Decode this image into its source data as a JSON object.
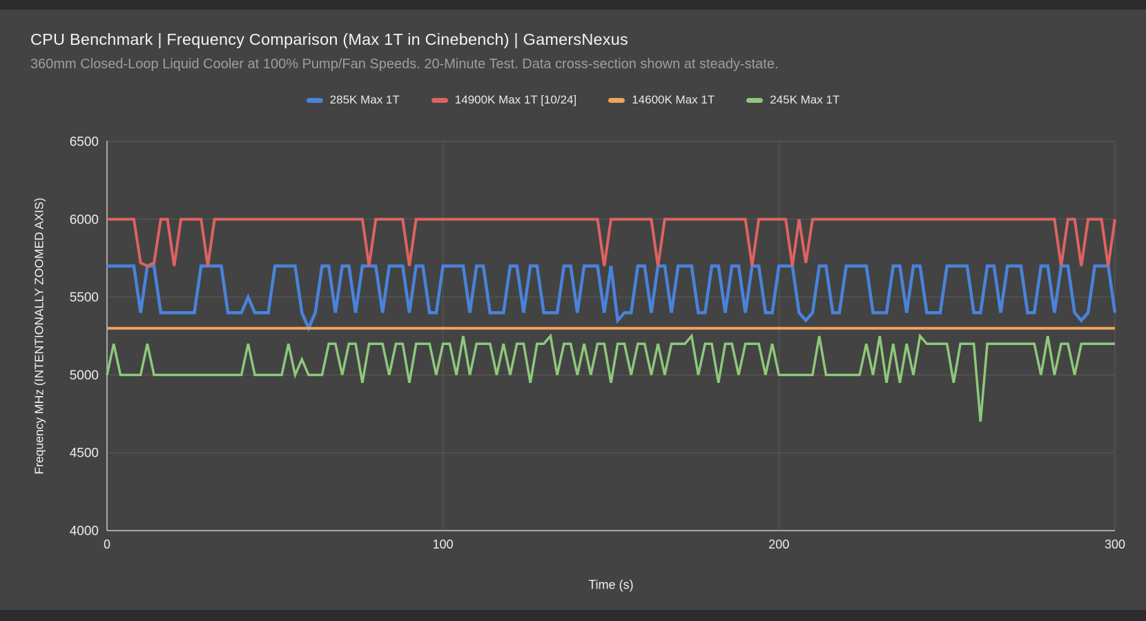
{
  "page": {
    "background": "#434343",
    "bar_color": "#2c2c2c"
  },
  "header": {
    "title": "CPU Benchmark | Frequency Comparison (Max 1T in Cinebench) | GamersNexus",
    "subtitle": "360mm Closed-Loop Liquid Cooler at 100% Pump/Fan Speeds. 20-Minute Test. Data cross-section shown at steady-state."
  },
  "colors": {
    "gridline": "#5d5d5d",
    "axis_line": "#c9c9c9",
    "tick_label": "#ececec"
  },
  "chart_data": {
    "type": "line",
    "title": "CPU Benchmark | Frequency Comparison (Max 1T in Cinebench) | GamersNexus",
    "xlabel": "Time (s)",
    "ylabel": "Frequency MHz (INTENTIONALLY ZOOMED AXIS)",
    "xlim": [
      0,
      300
    ],
    "ylim": [
      4000,
      6500
    ],
    "x_ticks": [
      0,
      100,
      200,
      300
    ],
    "y_ticks": [
      4000,
      4500,
      5000,
      5500,
      6000,
      6500
    ],
    "grid": true,
    "legend_position": "top-center",
    "x_start": 0,
    "x_step": 2,
    "series": [
      {
        "name": "285K Max 1T",
        "color": "#4983db",
        "values": [
          5700,
          5700,
          5700,
          5700,
          5700,
          5400,
          5700,
          5700,
          5400,
          5400,
          5400,
          5400,
          5400,
          5400,
          5700,
          5700,
          5700,
          5700,
          5400,
          5400,
          5400,
          5500,
          5400,
          5400,
          5400,
          5700,
          5700,
          5700,
          5700,
          5400,
          5300,
          5400,
          5700,
          5700,
          5400,
          5700,
          5700,
          5400,
          5700,
          5700,
          5700,
          5400,
          5700,
          5700,
          5700,
          5400,
          5700,
          5700,
          5400,
          5400,
          5700,
          5700,
          5700,
          5700,
          5400,
          5700,
          5700,
          5400,
          5400,
          5400,
          5700,
          5700,
          5400,
          5700,
          5700,
          5400,
          5400,
          5400,
          5700,
          5700,
          5400,
          5700,
          5700,
          5700,
          5400,
          5700,
          5350,
          5400,
          5400,
          5700,
          5700,
          5400,
          5700,
          5700,
          5400,
          5700,
          5700,
          5700,
          5400,
          5400,
          5700,
          5700,
          5400,
          5700,
          5700,
          5400,
          5700,
          5700,
          5400,
          5400,
          5700,
          5700,
          5700,
          5400,
          5350,
          5400,
          5700,
          5700,
          5400,
          5400,
          5700,
          5700,
          5700,
          5700,
          5400,
          5400,
          5400,
          5700,
          5700,
          5400,
          5700,
          5700,
          5400,
          5400,
          5400,
          5700,
          5700,
          5700,
          5700,
          5400,
          5400,
          5700,
          5700,
          5400,
          5700,
          5700,
          5700,
          5400,
          5400,
          5700,
          5700,
          5400,
          5700,
          5700,
          5400,
          5350,
          5400,
          5700,
          5700,
          5700,
          5400
        ]
      },
      {
        "name": "14900K Max 1T [10/24]",
        "color": "#dd6360",
        "values": [
          6000,
          6000,
          6000,
          6000,
          6000,
          5720,
          5700,
          5720,
          6000,
          6000,
          5700,
          6000,
          6000,
          6000,
          6000,
          5700,
          6000,
          6000,
          6000,
          6000,
          6000,
          6000,
          6000,
          6000,
          6000,
          6000,
          6000,
          6000,
          6000,
          6000,
          6000,
          6000,
          6000,
          6000,
          6000,
          6000,
          6000,
          6000,
          6000,
          5700,
          6000,
          6000,
          6000,
          6000,
          6000,
          5700,
          6000,
          6000,
          6000,
          6000,
          6000,
          6000,
          6000,
          6000,
          6000,
          6000,
          6000,
          6000,
          6000,
          6000,
          6000,
          6000,
          6000,
          6000,
          6000,
          6000,
          6000,
          6000,
          6000,
          6000,
          6000,
          6000,
          6000,
          6000,
          5700,
          6000,
          6000,
          6000,
          6000,
          6000,
          6000,
          6000,
          5700,
          6000,
          6000,
          6000,
          6000,
          6000,
          6000,
          6000,
          6000,
          6000,
          6000,
          6000,
          6000,
          6000,
          5700,
          6000,
          6000,
          6000,
          6000,
          6000,
          5700,
          6000,
          5720,
          6000,
          6000,
          6000,
          6000,
          6000,
          6000,
          6000,
          6000,
          6000,
          6000,
          6000,
          6000,
          6000,
          6000,
          6000,
          6000,
          6000,
          6000,
          6000,
          6000,
          6000,
          6000,
          6000,
          6000,
          6000,
          6000,
          6000,
          6000,
          6000,
          6000,
          6000,
          6000,
          6000,
          6000,
          6000,
          6000,
          6000,
          5700,
          6000,
          6000,
          5700,
          6000,
          6000,
          6000,
          5700,
          6000
        ]
      },
      {
        "name": "14600K Max 1T",
        "color": "#eea45c",
        "values": [
          5300,
          5300,
          5300,
          5300,
          5300,
          5300,
          5300,
          5300,
          5300,
          5300,
          5300,
          5300,
          5300,
          5300,
          5300,
          5300,
          5300,
          5300,
          5300,
          5300,
          5300,
          5300,
          5300,
          5300,
          5300,
          5300,
          5300,
          5300,
          5300,
          5300,
          5300,
          5300,
          5300,
          5300,
          5300,
          5300,
          5300,
          5300,
          5300,
          5300,
          5300,
          5300,
          5300,
          5300,
          5300,
          5300,
          5300,
          5300,
          5300,
          5300,
          5300,
          5300,
          5300,
          5300,
          5300,
          5300,
          5300,
          5300,
          5300,
          5300,
          5300,
          5300,
          5300,
          5300,
          5300,
          5300,
          5300,
          5300,
          5300,
          5300,
          5300,
          5300,
          5300,
          5300,
          5300,
          5300,
          5300,
          5300,
          5300,
          5300,
          5300,
          5300,
          5300,
          5300,
          5300,
          5300,
          5300,
          5300,
          5300,
          5300,
          5300,
          5300,
          5300,
          5300,
          5300,
          5300,
          5300,
          5300,
          5300,
          5300,
          5300,
          5300,
          5300,
          5300,
          5300,
          5300,
          5300,
          5300,
          5300,
          5300,
          5300,
          5300,
          5300,
          5300,
          5300,
          5300,
          5300,
          5300,
          5300,
          5300,
          5300,
          5300,
          5300,
          5300,
          5300,
          5300,
          5300,
          5300,
          5300,
          5300,
          5300,
          5300,
          5300,
          5300,
          5300,
          5300,
          5300,
          5300,
          5300,
          5300,
          5300,
          5300,
          5300,
          5300,
          5300,
          5300,
          5300,
          5300,
          5300,
          5300,
          5300
        ]
      },
      {
        "name": "245K Max 1T",
        "color": "#8dc87b",
        "values": [
          5000,
          5200,
          5000,
          5000,
          5000,
          5000,
          5200,
          5000,
          5000,
          5000,
          5000,
          5000,
          5000,
          5000,
          5000,
          5000,
          5000,
          5000,
          5000,
          5000,
          5000,
          5200,
          5000,
          5000,
          5000,
          5000,
          5000,
          5200,
          5000,
          5100,
          5000,
          5000,
          5000,
          5200,
          5200,
          5000,
          5200,
          5200,
          4950,
          5200,
          5200,
          5200,
          5000,
          5200,
          5200,
          4950,
          5200,
          5200,
          5200,
          5000,
          5200,
          5200,
          5000,
          5250,
          5000,
          5200,
          5200,
          5200,
          5000,
          5200,
          5000,
          5200,
          5200,
          4950,
          5200,
          5200,
          5250,
          5000,
          5200,
          5200,
          5000,
          5200,
          5000,
          5200,
          5200,
          4950,
          5200,
          5200,
          5000,
          5200,
          5200,
          5000,
          5200,
          5000,
          5200,
          5200,
          5200,
          5250,
          5000,
          5200,
          5200,
          4950,
          5200,
          5200,
          5000,
          5200,
          5200,
          5200,
          5000,
          5200,
          5000,
          5000,
          5000,
          5000,
          5000,
          5000,
          5250,
          5000,
          5000,
          5000,
          5000,
          5000,
          5000,
          5200,
          5000,
          5250,
          4950,
          5200,
          4950,
          5200,
          5000,
          5250,
          5200,
          5200,
          5200,
          5200,
          4950,
          5200,
          5200,
          5200,
          4700,
          5200,
          5200,
          5200,
          5200,
          5200,
          5200,
          5200,
          5200,
          5000,
          5250,
          5000,
          5200,
          5200,
          5000,
          5200,
          5200,
          5200,
          5200,
          5200,
          5200
        ]
      }
    ]
  }
}
